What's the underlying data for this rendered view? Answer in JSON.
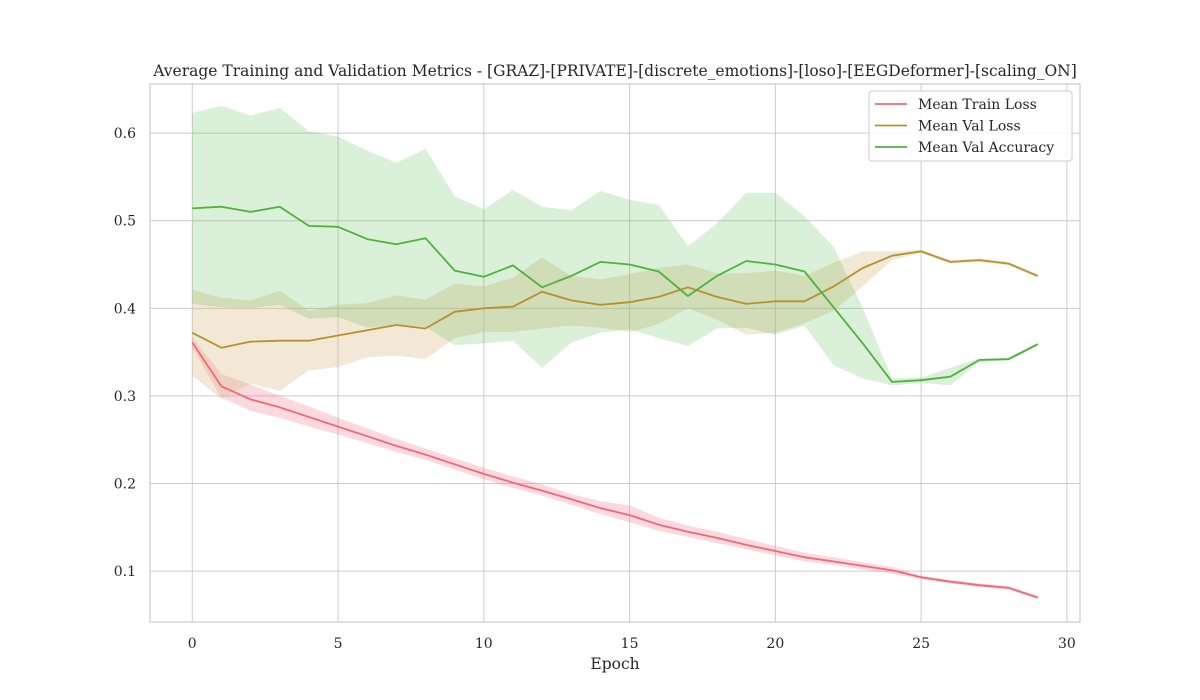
{
  "chart_data": {
    "type": "line",
    "title": "Average Training and Validation Metrics - [GRAZ]-[PRIVATE]-[discrete_emotions]-[loso]-[EEGDeformer]-[scaling_ON]",
    "xlabel": "Epoch",
    "ylabel": "",
    "xlim": [
      -1.45,
      30.45
    ],
    "ylim": [
      0.042,
      0.656
    ],
    "xticks": [
      0,
      5,
      10,
      15,
      20,
      25,
      30
    ],
    "yticks": [
      0.1,
      0.2,
      0.3,
      0.4,
      0.5,
      0.6
    ],
    "grid": true,
    "legend_position": "top-right",
    "x": [
      0,
      1,
      2,
      3,
      4,
      5,
      6,
      7,
      8,
      9,
      10,
      11,
      12,
      13,
      14,
      15,
      16,
      17,
      18,
      19,
      20,
      21,
      22,
      23,
      24,
      25,
      26,
      27,
      28,
      29
    ],
    "series": [
      {
        "name": "Mean Train Loss",
        "color": "#f0697a",
        "band_color": "#f0697a",
        "values": [
          0.361,
          0.311,
          0.296,
          0.287,
          0.276,
          0.265,
          0.254,
          0.243,
          0.233,
          0.222,
          0.211,
          0.201,
          0.192,
          0.182,
          0.172,
          0.164,
          0.153,
          0.145,
          0.138,
          0.13,
          0.123,
          0.116,
          0.111,
          0.106,
          0.101,
          0.093,
          0.088,
          0.084,
          0.081,
          0.07
        ],
        "lower": [
          0.355,
          0.298,
          0.283,
          0.275,
          0.265,
          0.256,
          0.246,
          0.236,
          0.227,
          0.216,
          0.205,
          0.195,
          0.186,
          0.176,
          0.165,
          0.156,
          0.146,
          0.139,
          0.132,
          0.125,
          0.118,
          0.111,
          0.107,
          0.102,
          0.097,
          0.091,
          0.086,
          0.082,
          0.079,
          0.068
        ],
        "upper": [
          0.367,
          0.325,
          0.313,
          0.3,
          0.288,
          0.275,
          0.263,
          0.251,
          0.24,
          0.229,
          0.218,
          0.208,
          0.199,
          0.188,
          0.18,
          0.175,
          0.161,
          0.152,
          0.145,
          0.137,
          0.129,
          0.121,
          0.116,
          0.11,
          0.105,
          0.095,
          0.09,
          0.086,
          0.083,
          0.072
        ]
      },
      {
        "name": "Mean Val Loss",
        "color": "#b5922e",
        "band_color": "#d9bd86",
        "values": [
          0.372,
          0.355,
          0.362,
          0.363,
          0.363,
          0.369,
          0.375,
          0.381,
          0.377,
          0.396,
          0.4,
          0.402,
          0.419,
          0.409,
          0.404,
          0.407,
          0.413,
          0.424,
          0.413,
          0.405,
          0.408,
          0.408,
          0.425,
          0.446,
          0.46,
          0.465,
          0.453,
          0.455,
          0.451,
          0.437
        ],
        "lower": [
          0.323,
          0.297,
          0.314,
          0.306,
          0.329,
          0.333,
          0.344,
          0.346,
          0.342,
          0.366,
          0.373,
          0.373,
          0.377,
          0.38,
          0.378,
          0.373,
          0.382,
          0.4,
          0.387,
          0.37,
          0.372,
          0.383,
          0.397,
          0.425,
          0.455,
          0.463,
          0.451,
          0.453,
          0.449,
          0.435
        ],
        "upper": [
          0.421,
          0.412,
          0.409,
          0.42,
          0.397,
          0.404,
          0.406,
          0.415,
          0.41,
          0.428,
          0.425,
          0.435,
          0.458,
          0.437,
          0.433,
          0.439,
          0.446,
          0.45,
          0.44,
          0.44,
          0.443,
          0.437,
          0.452,
          0.465,
          0.465,
          0.467,
          0.455,
          0.457,
          0.453,
          0.439
        ]
      },
      {
        "name": "Mean Val Accuracy",
        "color": "#4db33d",
        "band_color": "#4db33d",
        "values": [
          0.514,
          0.516,
          0.51,
          0.516,
          0.494,
          0.493,
          0.479,
          0.473,
          0.48,
          0.443,
          0.436,
          0.449,
          0.424,
          0.437,
          0.453,
          0.45,
          0.442,
          0.414,
          0.437,
          0.454,
          0.45,
          0.442,
          0.401,
          0.36,
          0.316,
          0.318,
          0.322,
          0.341,
          0.342,
          0.359
        ],
        "lower": [
          0.405,
          0.401,
          0.4,
          0.404,
          0.388,
          0.39,
          0.378,
          0.381,
          0.379,
          0.358,
          0.36,
          0.363,
          0.332,
          0.361,
          0.372,
          0.376,
          0.366,
          0.357,
          0.377,
          0.378,
          0.37,
          0.38,
          0.335,
          0.32,
          0.312,
          0.315,
          0.312,
          0.339,
          0.34,
          0.357
        ],
        "upper": [
          0.623,
          0.631,
          0.62,
          0.629,
          0.602,
          0.596,
          0.58,
          0.566,
          0.582,
          0.528,
          0.513,
          0.535,
          0.516,
          0.512,
          0.534,
          0.524,
          0.518,
          0.471,
          0.497,
          0.532,
          0.532,
          0.505,
          0.47,
          0.4,
          0.32,
          0.321,
          0.332,
          0.343,
          0.344,
          0.361
        ]
      }
    ]
  }
}
